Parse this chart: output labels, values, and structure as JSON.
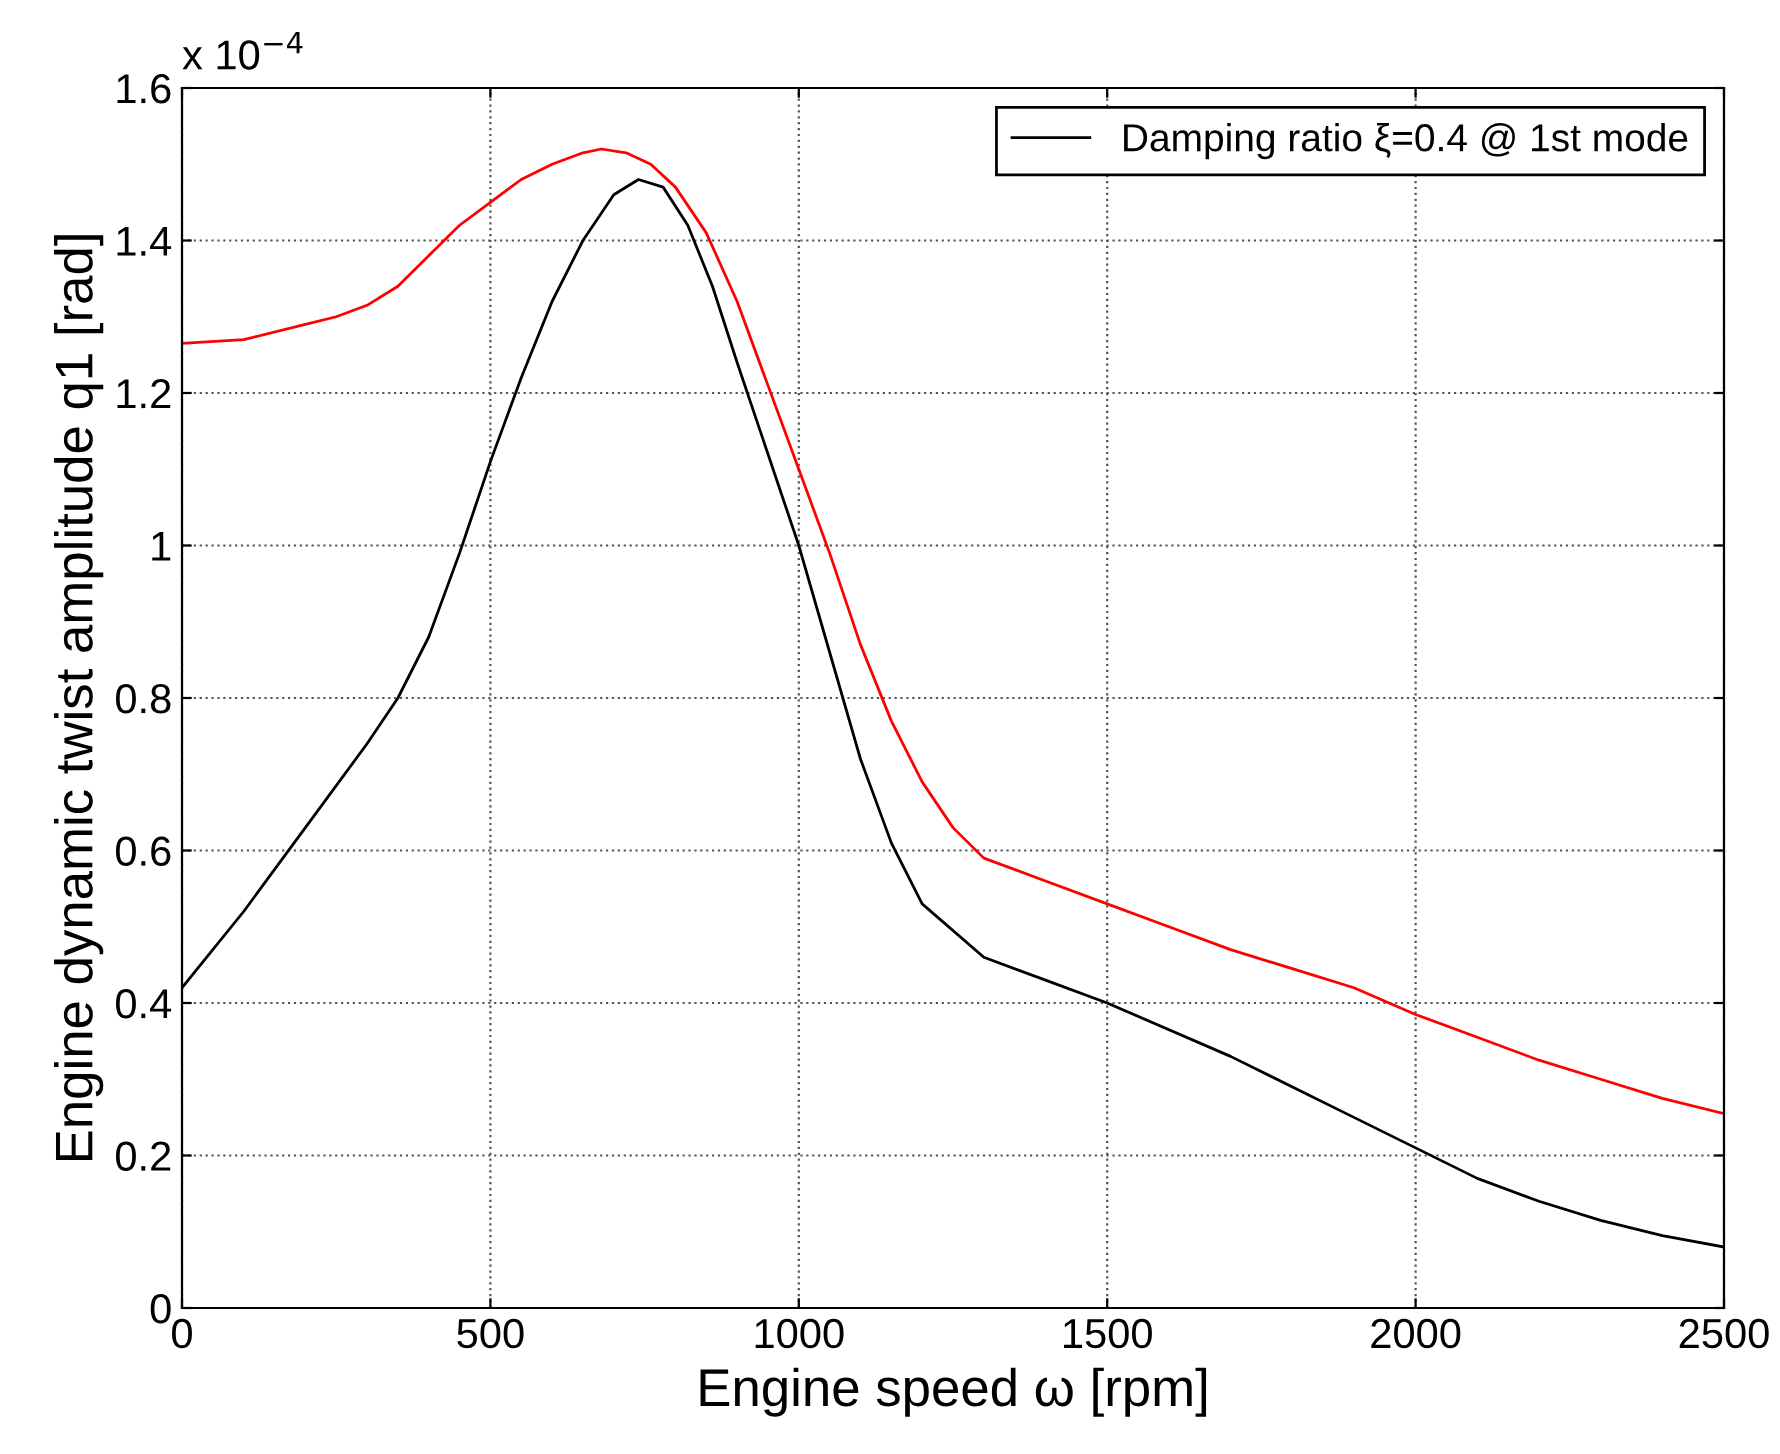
{
  "chart_data": {
    "type": "line",
    "xlabel": "Engine speed ω [rpm]",
    "ylabel": "Engine dynamic twist amplitude q1 [rad]",
    "annotations": [
      "x 10$^{−4}$"
    ],
    "xlim": [
      0,
      2500
    ],
    "xticks": [
      0,
      500,
      1000,
      1500,
      2000,
      2500
    ],
    "ylim": [
      0,
      1.6
    ],
    "yticks": [
      0,
      0.2,
      0.4,
      0.6,
      0.8,
      1,
      1.2,
      1.4,
      1.6
    ],
    "grid": true,
    "legend": "top right",
    "marker": "none",
    "line_style": "solid",
    "series": [
      {
        "name": "Damping ratio ξ=0.4 @ 1st mode",
        "color": "#000000",
        "x": [
          0,
          100,
          200,
          300,
          350,
          400,
          450,
          500,
          550,
          600,
          650,
          700,
          740,
          780,
          820,
          860,
          900,
          950,
          1000,
          1050,
          1100,
          1150,
          1200,
          1300,
          1400,
          1500,
          1700,
          1900,
          2000,
          2100,
          2200,
          2300,
          2400,
          2500
        ],
        "values": [
          0.42,
          0.52,
          0.63,
          0.74,
          0.8,
          0.88,
          0.99,
          1.11,
          1.22,
          1.32,
          1.4,
          1.46,
          1.48,
          1.47,
          1.42,
          1.34,
          1.24,
          1.12,
          1.0,
          0.86,
          0.72,
          0.61,
          0.53,
          0.46,
          0.43,
          0.4,
          0.33,
          0.25,
          0.21,
          0.17,
          0.14,
          0.115,
          0.095,
          0.08
        ]
      },
      {
        "color": "#ff0000",
        "x": [
          0,
          100,
          200,
          250,
          300,
          350,
          400,
          450,
          500,
          550,
          600,
          650,
          680,
          720,
          760,
          800,
          850,
          900,
          950,
          1000,
          1050,
          1100,
          1150,
          1200,
          1250,
          1300,
          1400,
          1500,
          1600,
          1700,
          1800,
          1900,
          2000,
          2100,
          2200,
          2300,
          2400,
          2500
        ],
        "values": [
          1.265,
          1.27,
          1.29,
          1.3,
          1.315,
          1.34,
          1.38,
          1.42,
          1.45,
          1.48,
          1.5,
          1.515,
          1.52,
          1.515,
          1.5,
          1.47,
          1.41,
          1.32,
          1.21,
          1.1,
          0.99,
          0.87,
          0.77,
          0.69,
          0.63,
          0.59,
          0.56,
          0.53,
          0.5,
          0.47,
          0.445,
          0.42,
          0.385,
          0.355,
          0.325,
          0.3,
          0.275,
          0.255
        ]
      }
    ]
  }
}
